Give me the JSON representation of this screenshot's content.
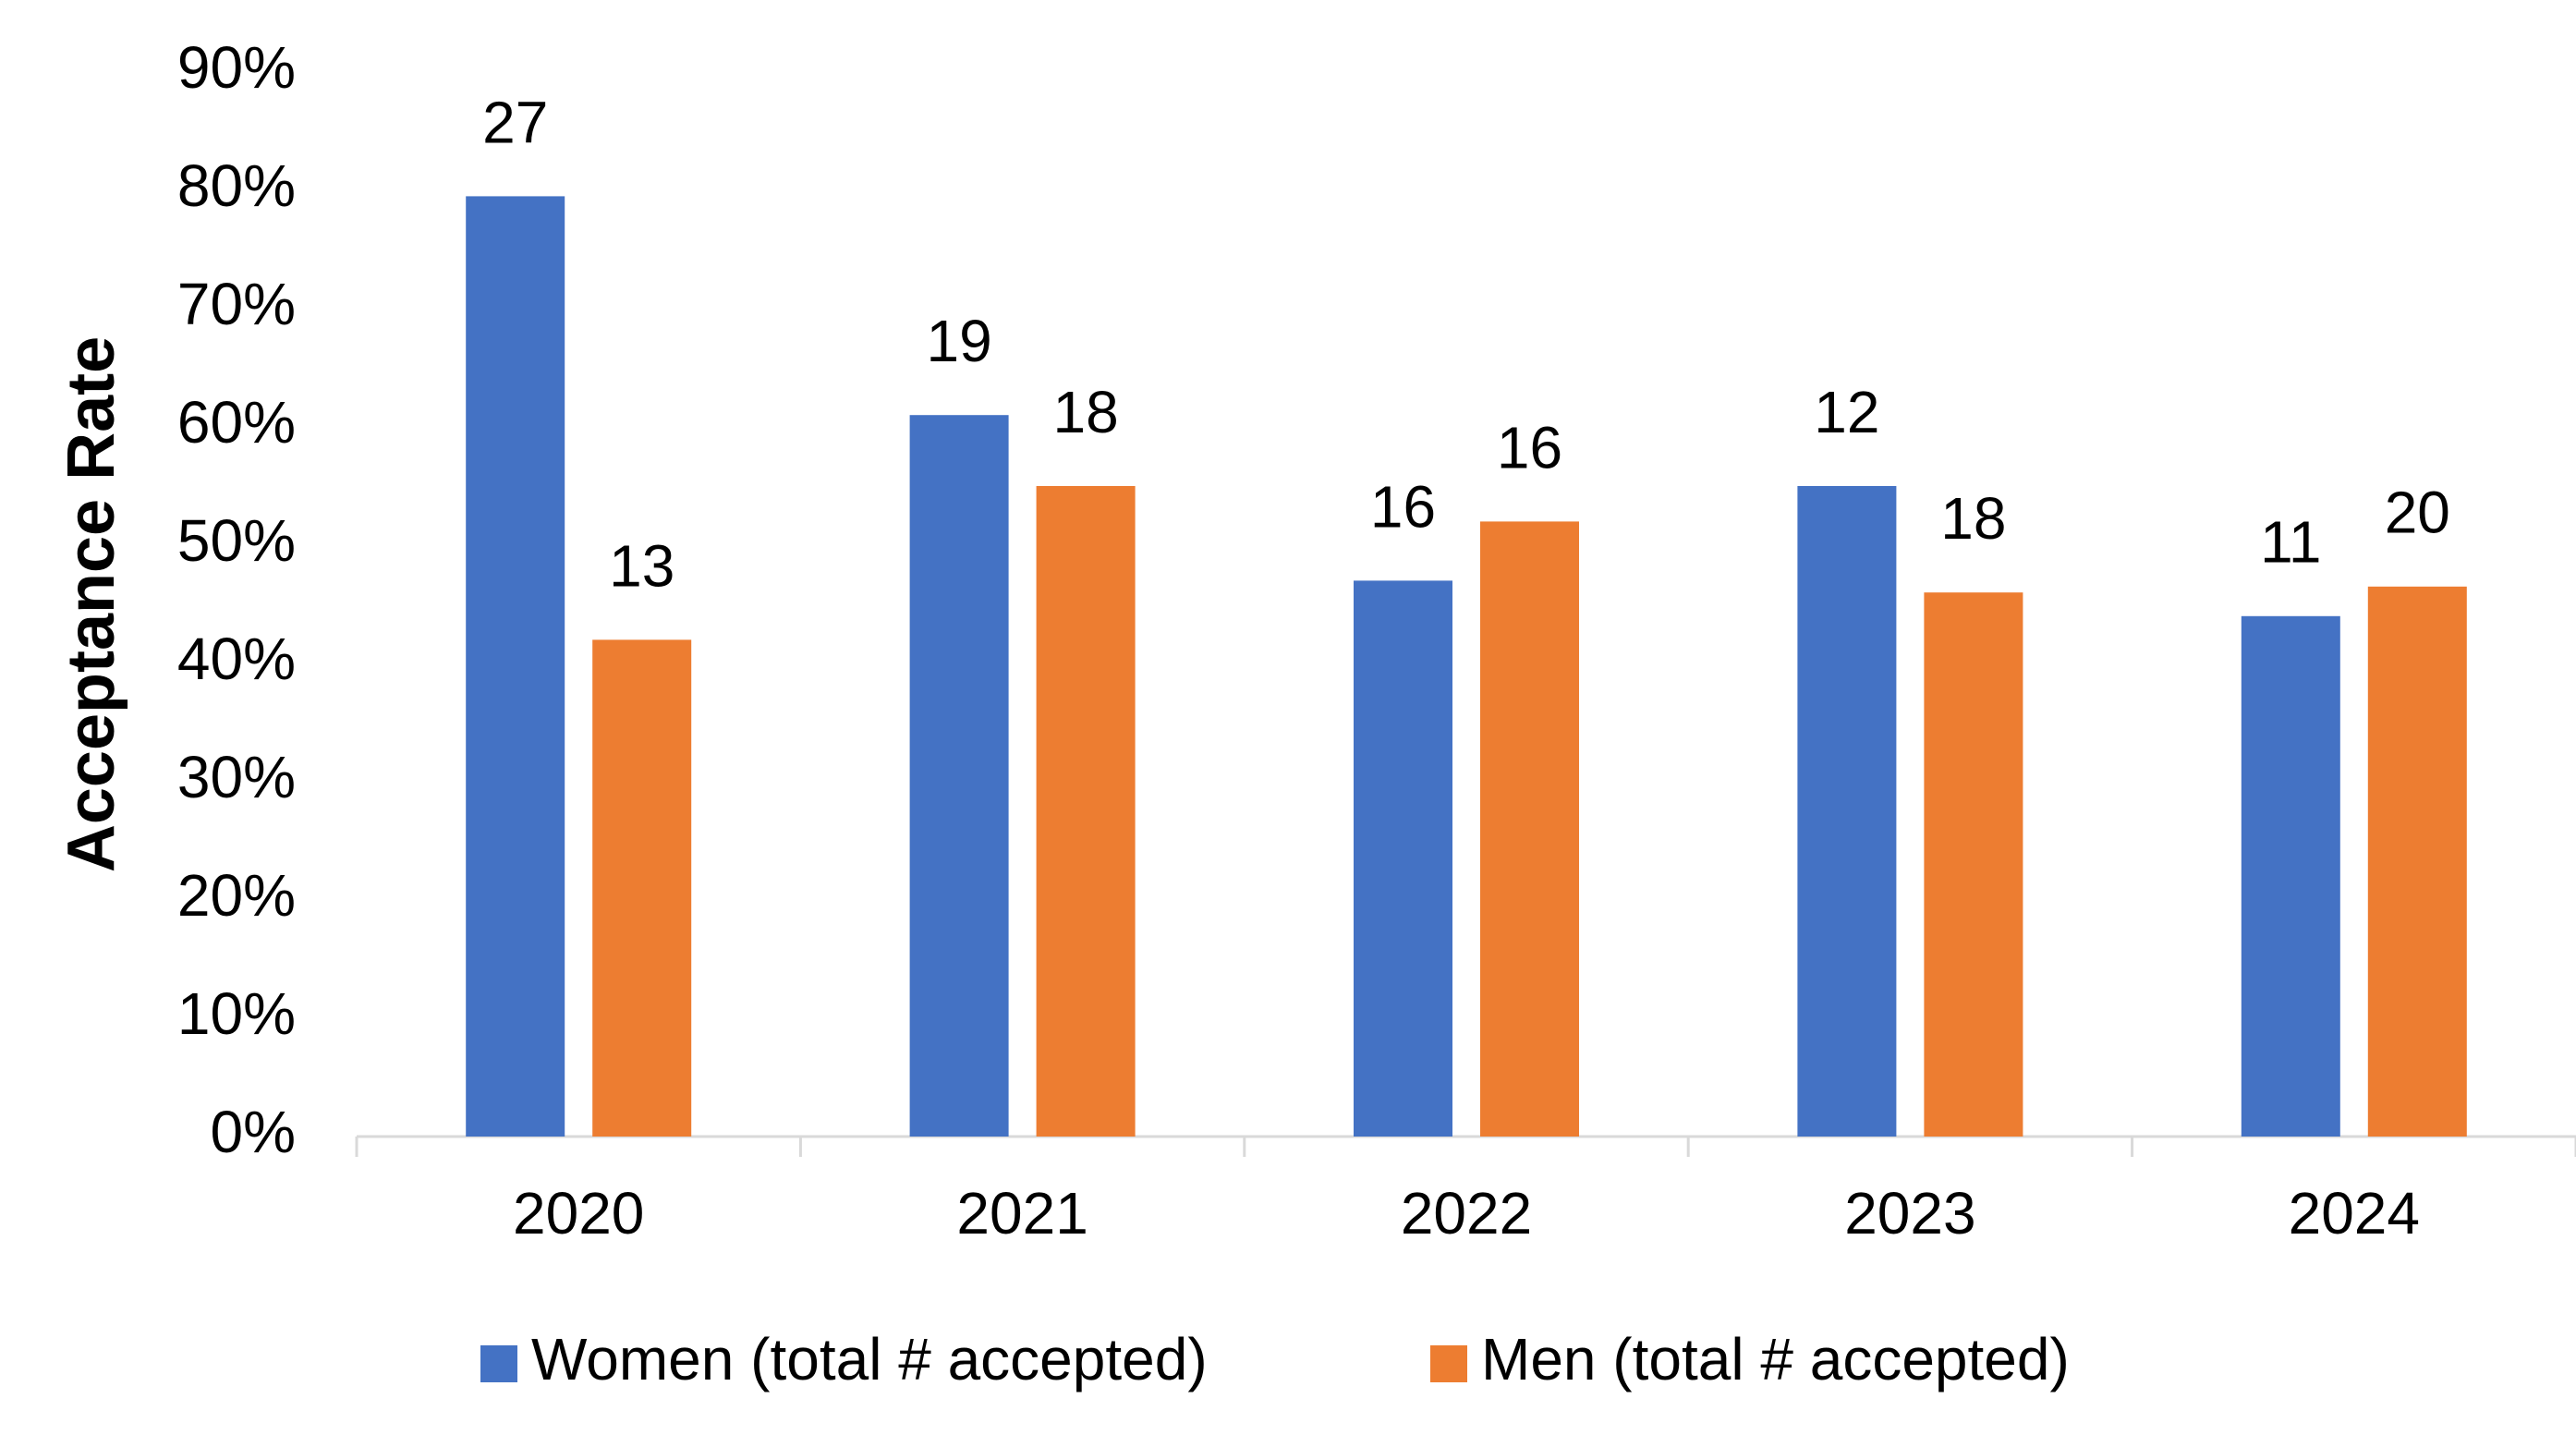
{
  "chart_data": {
    "type": "bar",
    "y_label": "Acceptance Rate",
    "categories": [
      "2020",
      "2021",
      "2022",
      "2023",
      "2024"
    ],
    "series": [
      {
        "name": "Women (total # accepted)",
        "color": "#4472c4",
        "values": [
          79.5,
          61,
          47,
          55,
          44
        ],
        "counts": [
          27,
          19,
          16,
          12,
          11
        ]
      },
      {
        "name": "Men (total # accepted)",
        "color": "#ed7d31",
        "values": [
          42,
          55,
          52,
          46,
          46.5
        ],
        "counts": [
          13,
          18,
          16,
          18,
          20
        ]
      }
    ],
    "ylim": [
      0,
      90
    ],
    "yticks": [
      {
        "value": 0,
        "label": "0%"
      },
      {
        "value": 10,
        "label": "10%"
      },
      {
        "value": 20,
        "label": "20%"
      },
      {
        "value": 30,
        "label": "30%"
      },
      {
        "value": 40,
        "label": "40%"
      },
      {
        "value": 50,
        "label": "50%"
      },
      {
        "value": 60,
        "label": "60%"
      },
      {
        "value": 70,
        "label": "70%"
      },
      {
        "value": 80,
        "label": "80%"
      },
      {
        "value": 90,
        "label": "90%"
      }
    ],
    "grid": false,
    "legend": "bottom"
  }
}
